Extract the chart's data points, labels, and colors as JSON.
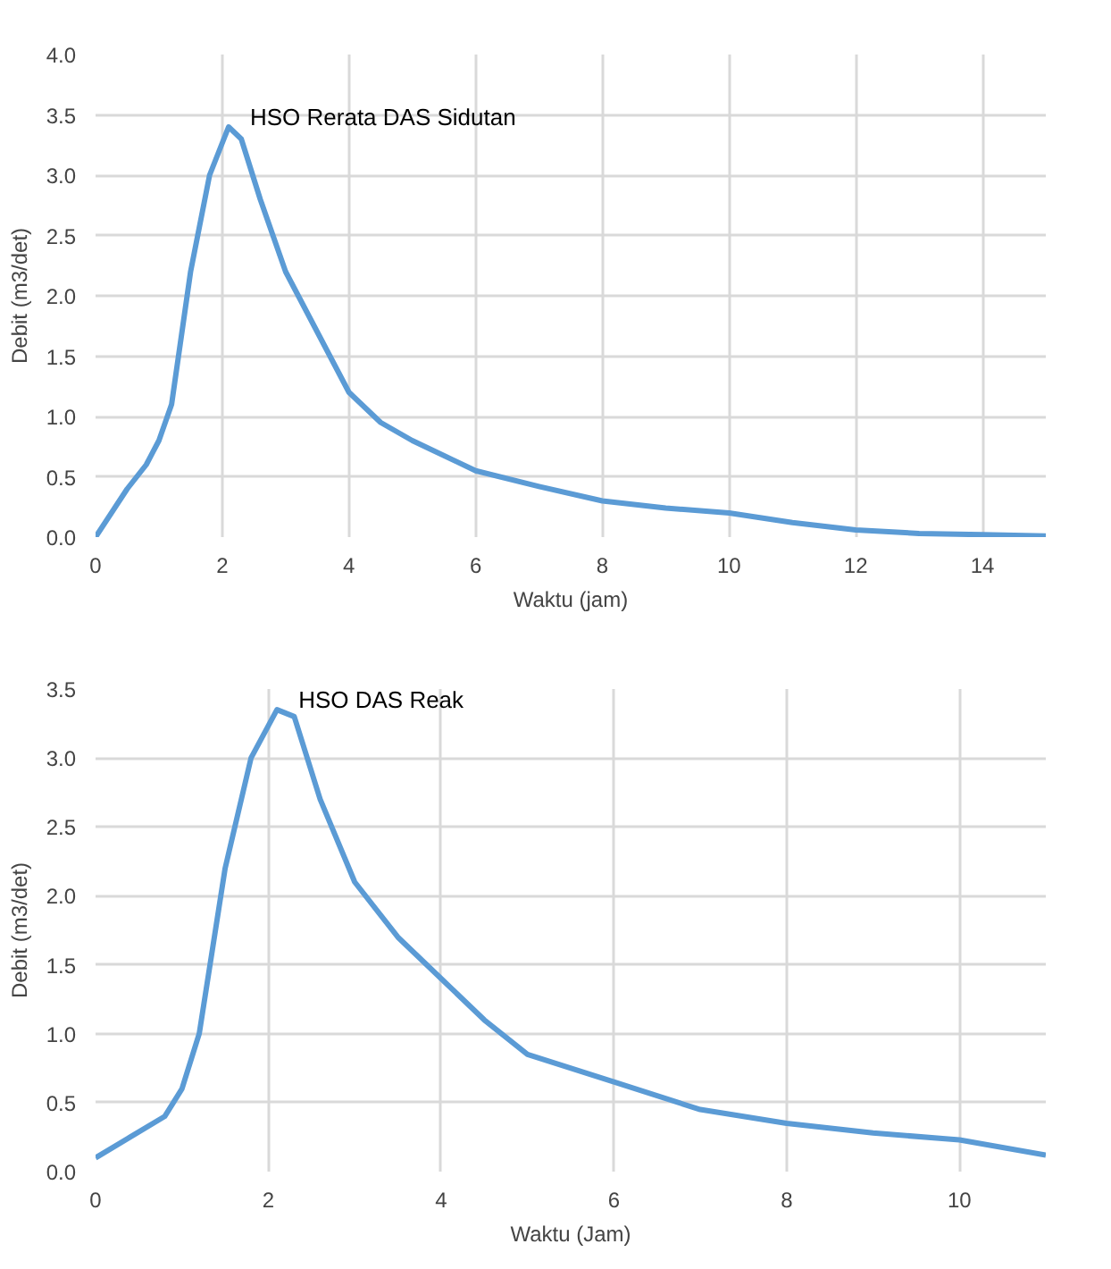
{
  "chart_data": [
    {
      "type": "line",
      "xlabel": "Waktu (jam)",
      "ylabel": "Debit (m3/det)",
      "xlim": [
        0,
        15
      ],
      "ylim": [
        0,
        4
      ],
      "xticks": [
        0,
        2,
        4,
        6,
        8,
        10,
        12,
        14
      ],
      "yticks": [
        {
          "value": 0,
          "label": "0.0"
        },
        {
          "value": 0.5,
          "label": "0.5"
        },
        {
          "value": 1,
          "label": "1.0"
        },
        {
          "value": 1.5,
          "label": "1.5"
        },
        {
          "value": 2,
          "label": "2.0"
        },
        {
          "value": 2.5,
          "label": "2.5"
        },
        {
          "value": 3,
          "label": "3.0"
        },
        {
          "value": 3.5,
          "label": "3.5"
        },
        {
          "value": 4,
          "label": "4.0"
        }
      ],
      "grid": true,
      "line_style": "solid",
      "marker": "none",
      "x": [
        0,
        0.5,
        0.8,
        1,
        1.2,
        1.5,
        1.8,
        2.1,
        2.3,
        2.6,
        3,
        3.5,
        4,
        4.5,
        5,
        6,
        7,
        8,
        9,
        10,
        11,
        12,
        13,
        14,
        15
      ],
      "series": [
        {
          "name": "HSO Rerata DAS Sidutan",
          "color": "#5b9bd5",
          "values": [
            0,
            0.4,
            0.6,
            0.8,
            1.1,
            2.2,
            3.0,
            3.4,
            3.3,
            2.8,
            2.2,
            1.7,
            1.2,
            0.95,
            0.8,
            0.55,
            0.42,
            0.3,
            0.24,
            0.2,
            0.12,
            0.06,
            0.03,
            0.02,
            0.01
          ]
        }
      ]
    },
    {
      "type": "line",
      "xlabel": "Waktu (Jam)",
      "ylabel": "Debit (m3/det)",
      "xlim": [
        0,
        11
      ],
      "ylim": [
        0,
        3.5
      ],
      "xticks": [
        0,
        2,
        4,
        6,
        8,
        10
      ],
      "yticks": [
        {
          "value": 0,
          "label": "0.0"
        },
        {
          "value": 0.5,
          "label": "0.5"
        },
        {
          "value": 1,
          "label": "1.0"
        },
        {
          "value": 1.5,
          "label": "1.5"
        },
        {
          "value": 2,
          "label": "2.0"
        },
        {
          "value": 2.5,
          "label": "2.5"
        },
        {
          "value": 3,
          "label": "3.0"
        },
        {
          "value": 3.5,
          "label": "3.5"
        }
      ],
      "grid": true,
      "line_style": "solid",
      "marker": "none",
      "x": [
        0,
        0.4,
        0.8,
        1,
        1.2,
        1.5,
        1.8,
        2.1,
        2.3,
        2.6,
        3,
        3.5,
        4,
        4.5,
        5,
        6,
        7,
        8,
        9,
        10,
        11
      ],
      "series": [
        {
          "name": "HSO DAS Reak",
          "color": "#5b9bd5",
          "values": [
            0.1,
            0.25,
            0.4,
            0.6,
            1.0,
            2.2,
            3.0,
            3.35,
            3.3,
            2.7,
            2.1,
            1.7,
            1.4,
            1.1,
            0.85,
            0.65,
            0.45,
            0.35,
            0.28,
            0.23,
            0.12
          ]
        }
      ]
    }
  ]
}
